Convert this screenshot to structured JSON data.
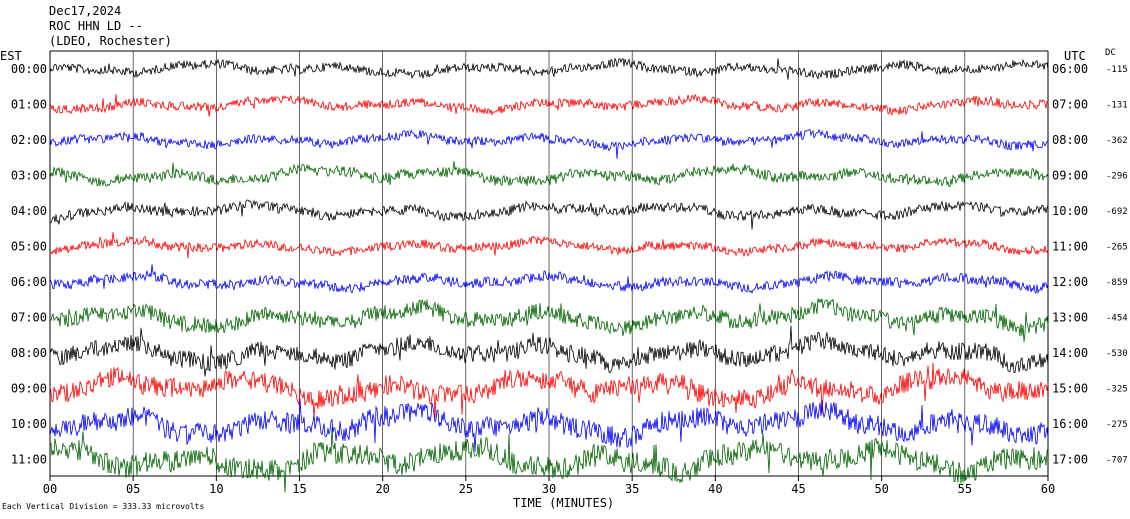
{
  "header": {
    "date": "Dec17,2024",
    "station": "ROC HHN LD --",
    "network": "(LDEO, Rochester)"
  },
  "left_axis_title": "EST",
  "right_axis_title": "UTC",
  "dc_title": "DC",
  "colors": {
    "black": "#000000",
    "red": "#ff0000",
    "blue": "#0000ff",
    "green": "#006400",
    "grid": "#000000"
  },
  "chart_data": {
    "type": "line",
    "title": "Dec17,2024",
    "xlabel": "TIME (MINUTES)",
    "xlim": [
      0,
      60
    ],
    "x_ticks": [
      0,
      5,
      10,
      15,
      20,
      25,
      30,
      35,
      40,
      45,
      50,
      55,
      60
    ],
    "x_tick_labels": [
      "00",
      "05",
      "10",
      "15",
      "20",
      "25",
      "30",
      "35",
      "40",
      "45",
      "50",
      "55",
      "60"
    ],
    "scale_note": "Each Vertical Division = 333.33 microvolts",
    "series": [
      {
        "est": "00:00",
        "utc": "06:00",
        "dc": "-115",
        "color": "black",
        "amplitude": 1.0
      },
      {
        "est": "01:00",
        "utc": "07:00",
        "dc": "-131",
        "color": "red",
        "amplitude": 1.0
      },
      {
        "est": "02:00",
        "utc": "08:00",
        "dc": "-362",
        "color": "blue",
        "amplitude": 1.0
      },
      {
        "est": "03:00",
        "utc": "09:00",
        "dc": "-296",
        "color": "green",
        "amplitude": 1.2
      },
      {
        "est": "04:00",
        "utc": "10:00",
        "dc": "-692",
        "color": "black",
        "amplitude": 1.1
      },
      {
        "est": "05:00",
        "utc": "11:00",
        "dc": "-265",
        "color": "red",
        "amplitude": 1.0
      },
      {
        "est": "06:00",
        "utc": "12:00",
        "dc": "-859",
        "color": "blue",
        "amplitude": 1.1
      },
      {
        "est": "07:00",
        "utc": "13:00",
        "dc": "-454",
        "color": "green",
        "amplitude": 1.8
      },
      {
        "est": "08:00",
        "utc": "14:00",
        "dc": "-530",
        "color": "black",
        "amplitude": 2.0
      },
      {
        "est": "09:00",
        "utc": "15:00",
        "dc": "-325",
        "color": "red",
        "amplitude": 2.2
      },
      {
        "est": "10:00",
        "utc": "16:00",
        "dc": "-275",
        "color": "blue",
        "amplitude": 2.3
      },
      {
        "est": "11:00",
        "utc": "17:00",
        "dc": "-707",
        "color": "green",
        "amplitude": 2.4
      }
    ]
  }
}
